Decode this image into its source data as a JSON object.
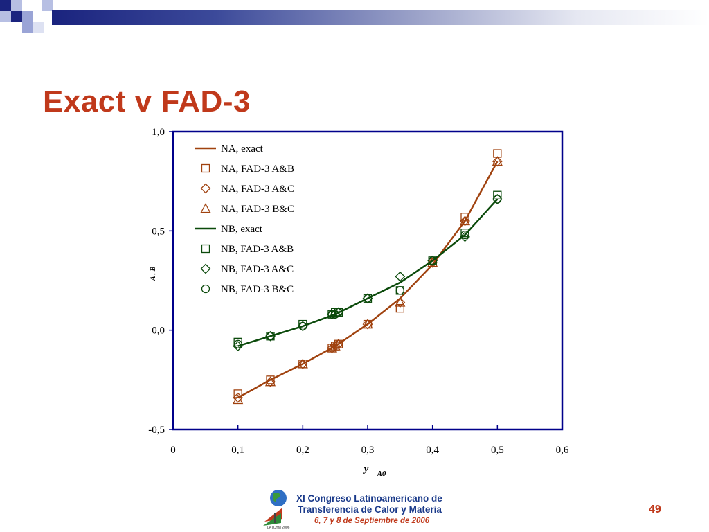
{
  "slide": {
    "title": "Exact v FAD-3",
    "page_number": "49",
    "footer": {
      "line1": "XI Congreso Latinoamericano de",
      "line2": "Transferencia de Calor y Materia",
      "line3": "6, 7 y 8 de Septiembre de 2006"
    }
  },
  "colors": {
    "title": "#c0391b",
    "series_A": "#a0420f",
    "series_B": "#0b4a0b",
    "axis": "#00008b",
    "header_bar": "#1a237e"
  },
  "chart_data": {
    "type": "line",
    "xlabel_main": "y",
    "xlabel_sub": "A0",
    "ylabel_parts": [
      "A",
      ",",
      "B"
    ],
    "xlim": [
      0,
      0.6
    ],
    "ylim": [
      -0.5,
      1.0
    ],
    "x_ticks": [
      {
        "value": 0,
        "label": "0"
      },
      {
        "value": 0.1,
        "label": "0,1"
      },
      {
        "value": 0.2,
        "label": "0,2"
      },
      {
        "value": 0.3,
        "label": "0,3"
      },
      {
        "value": 0.4,
        "label": "0,4"
      },
      {
        "value": 0.5,
        "label": "0,5"
      },
      {
        "value": 0.6,
        "label": "0,6"
      }
    ],
    "y_ticks": [
      {
        "value": -0.5,
        "label": "-0,5"
      },
      {
        "value": 0.0,
        "label": "0,0"
      },
      {
        "value": 0.5,
        "label": "0,5"
      },
      {
        "value": 1.0,
        "label": "1,0"
      }
    ],
    "legend_position": "top-left",
    "series": [
      {
        "name": "NA, exact",
        "kind": "line",
        "color": "#a0420f",
        "x": [
          0.1,
          0.15,
          0.2,
          0.25,
          0.3,
          0.35,
          0.4,
          0.45,
          0.5
        ],
        "y": [
          -0.34,
          -0.25,
          -0.17,
          -0.08,
          0.03,
          0.16,
          0.33,
          0.55,
          0.85
        ]
      },
      {
        "name": "NA, FAD-3 A&B",
        "kind": "marker",
        "marker": "square",
        "color": "#a0420f",
        "x": [
          0.1,
          0.15,
          0.2,
          0.245,
          0.25,
          0.255,
          0.3,
          0.35,
          0.4,
          0.45,
          0.5
        ],
        "y": [
          -0.32,
          -0.25,
          -0.17,
          -0.09,
          -0.08,
          -0.07,
          0.03,
          0.11,
          0.34,
          0.57,
          0.89
        ]
      },
      {
        "name": "NA, FAD-3 A&C",
        "kind": "marker",
        "marker": "diamond",
        "color": "#a0420f",
        "x": [
          0.1,
          0.15,
          0.2,
          0.245,
          0.25,
          0.255,
          0.3,
          0.35,
          0.4,
          0.45,
          0.5
        ],
        "y": [
          -0.34,
          -0.26,
          -0.17,
          -0.09,
          -0.08,
          -0.07,
          0.03,
          0.14,
          0.34,
          0.55,
          0.85
        ]
      },
      {
        "name": "NA, FAD-3 B&C",
        "kind": "marker",
        "marker": "triangle",
        "color": "#a0420f",
        "x": [
          0.1,
          0.15,
          0.2,
          0.245,
          0.25,
          0.255,
          0.3,
          0.35,
          0.4,
          0.45,
          0.5
        ],
        "y": [
          -0.35,
          -0.26,
          -0.17,
          -0.09,
          -0.08,
          -0.07,
          0.03,
          0.14,
          0.34,
          0.55,
          0.85
        ]
      },
      {
        "name": "NB, exact",
        "kind": "line",
        "color": "#0b4a0b",
        "x": [
          0.1,
          0.15,
          0.2,
          0.25,
          0.3,
          0.35,
          0.4,
          0.45,
          0.5
        ],
        "y": [
          -0.08,
          -0.03,
          0.02,
          0.08,
          0.16,
          0.24,
          0.35,
          0.48,
          0.66
        ]
      },
      {
        "name": "NB, FAD-3 A&B",
        "kind": "marker",
        "marker": "square",
        "color": "#0b4a0b",
        "x": [
          0.1,
          0.15,
          0.2,
          0.245,
          0.25,
          0.255,
          0.3,
          0.35,
          0.4,
          0.45,
          0.5
        ],
        "y": [
          -0.06,
          -0.03,
          0.03,
          0.08,
          0.09,
          0.09,
          0.16,
          0.2,
          0.35,
          0.49,
          0.68
        ]
      },
      {
        "name": "NB, FAD-3 A&C",
        "kind": "marker",
        "marker": "diamond",
        "color": "#0b4a0b",
        "x": [
          0.1,
          0.15,
          0.2,
          0.245,
          0.25,
          0.255,
          0.3,
          0.35,
          0.4,
          0.45,
          0.5
        ],
        "y": [
          -0.08,
          -0.03,
          0.02,
          0.08,
          0.08,
          0.09,
          0.16,
          0.27,
          0.35,
          0.47,
          0.66
        ]
      },
      {
        "name": "NB, FAD-3 B&C",
        "kind": "marker",
        "marker": "circle",
        "color": "#0b4a0b",
        "x": [
          0.1,
          0.15,
          0.2,
          0.245,
          0.25,
          0.255,
          0.3,
          0.35,
          0.4,
          0.45,
          0.5
        ],
        "y": [
          -0.07,
          -0.03,
          0.02,
          0.08,
          0.08,
          0.09,
          0.16,
          0.2,
          0.35,
          0.48,
          0.66
        ]
      }
    ]
  }
}
